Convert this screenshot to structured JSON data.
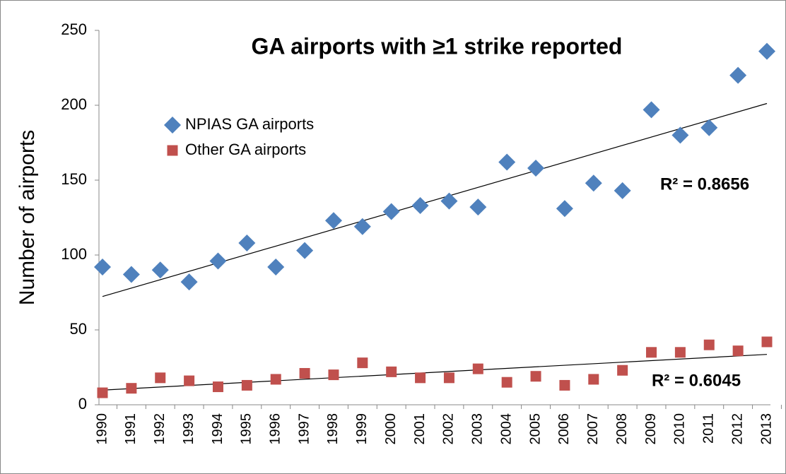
{
  "chart_data": {
    "type": "scatter",
    "title": "GA airports with ≥1 strike reported",
    "y_label": "Number of airports",
    "categories": [
      "1990",
      "1991",
      "1992",
      "1993",
      "1994",
      "1995",
      "1996",
      "1997",
      "1998",
      "1999",
      "2000",
      "2001",
      "2002",
      "2003",
      "2004",
      "2005",
      "2006",
      "2007",
      "2008",
      "2009",
      "2010",
      "2011",
      "2012",
      "2013"
    ],
    "series": [
      {
        "name": "NPIAS GA airports",
        "color": "#4f81bd",
        "marker": "diamond",
        "trendline": true,
        "values": [
          92,
          87,
          90,
          82,
          96,
          108,
          92,
          103,
          123,
          119,
          129,
          133,
          136,
          132,
          162,
          158,
          131,
          148,
          143,
          197,
          180,
          185,
          220,
          236
        ]
      },
      {
        "name": "Other GA airports",
        "color": "#c0504d",
        "marker": "square",
        "trendline": true,
        "values": [
          8,
          11,
          18,
          16,
          12,
          13,
          17,
          21,
          20,
          28,
          22,
          18,
          18,
          24,
          15,
          19,
          13,
          17,
          23,
          35,
          35,
          40,
          36,
          42
        ]
      }
    ],
    "annotations": [
      "R² = 0.8656",
      "R² = 0.6045"
    ],
    "ylim": [
      0,
      250
    ],
    "yticks": [
      0,
      50,
      100,
      150,
      200,
      250
    ],
    "grid": false,
    "legend": "upper left"
  }
}
